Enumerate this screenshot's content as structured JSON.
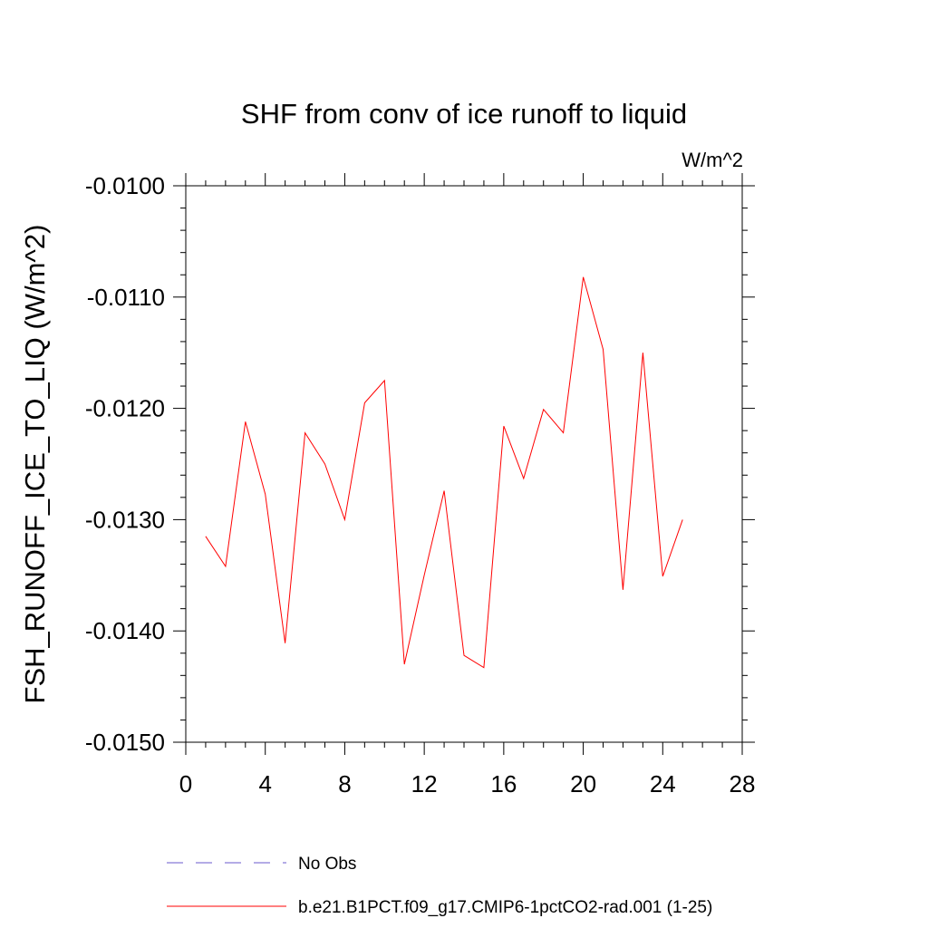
{
  "chart_data": {
    "type": "line",
    "title": "SHF from conv of ice runoff to liquid",
    "units_label": "W/m^2",
    "ylabel": "FSH_RUNOFF_ICE_TO_LIQ  (W/m^2)",
    "xlabel": "",
    "xlim": [
      0,
      28
    ],
    "ylim": [
      -0.015,
      -0.01
    ],
    "x_ticks": [
      0,
      4,
      8,
      12,
      16,
      20,
      24,
      28
    ],
    "x_tick_labels": [
      "0",
      "4",
      "8",
      "12",
      "16",
      "20",
      "24",
      "28"
    ],
    "y_ticks": [
      -0.01,
      -0.011,
      -0.012,
      -0.013,
      -0.014,
      -0.015
    ],
    "y_tick_labels": [
      "-0.0100",
      "-0.0110",
      "-0.0120",
      "-0.0130",
      "-0.0140",
      "-0.0150"
    ],
    "series": [
      {
        "name": "b.e21.B1PCT.f09_g17.CMIP6-1pctCO2-rad.001 (1-25)",
        "color": "#ff0000",
        "x": [
          1,
          2,
          3,
          4,
          5,
          6,
          7,
          8,
          9,
          10,
          11,
          12,
          13,
          14,
          15,
          16,
          17,
          18,
          19,
          20,
          21,
          22,
          23,
          24,
          25
        ],
        "y": [
          -0.01315,
          -0.01342,
          -0.01212,
          -0.01277,
          -0.01411,
          -0.01222,
          -0.0125,
          -0.013,
          -0.01195,
          -0.01175,
          -0.0143,
          -0.0135,
          -0.01274,
          -0.01422,
          -0.01433,
          -0.01216,
          -0.01263,
          -0.01201,
          -0.01222,
          -0.01082,
          -0.01147,
          -0.01363,
          -0.0115,
          -0.01351,
          -0.013
        ]
      }
    ],
    "legend": {
      "placement": "bottom",
      "entries": [
        {
          "label": "No Obs",
          "color": "#6a5acd",
          "style": "dashed"
        },
        {
          "label": "b.e21.B1PCT.f09_g17.CMIP6-1pctCO2-rad.001 (1-25)",
          "color": "#ff0000",
          "style": "solid"
        }
      ]
    }
  }
}
